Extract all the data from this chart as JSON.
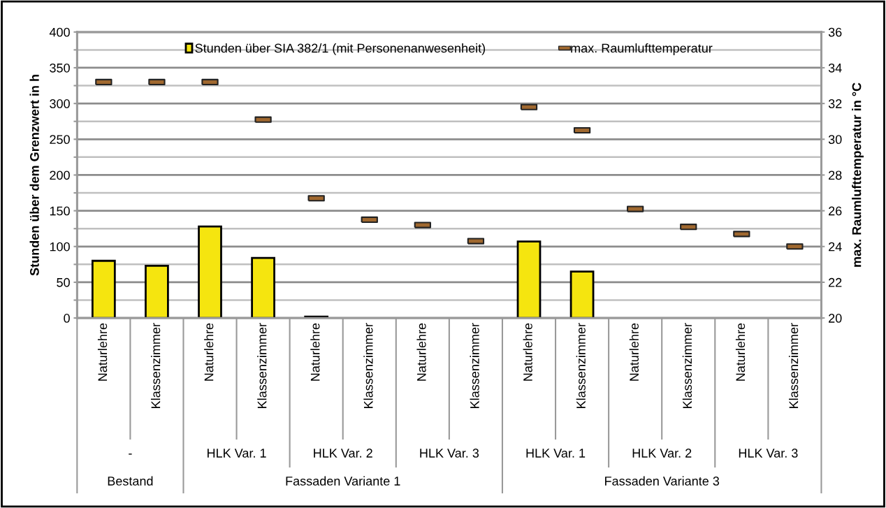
{
  "chart_data": {
    "type": "bar",
    "categories": [
      "Naturlehre",
      "Klassenzimmer",
      "Naturlehre",
      "Klassenzimmer",
      "Naturlehre",
      "Klassenzimmer",
      "Naturlehre",
      "Klassenzimmer",
      "Naturlehre",
      "Klassenzimmer",
      "Naturlehre",
      "Klassenzimmer",
      "Naturlehre",
      "Klassenzimmer"
    ],
    "series": [
      {
        "name": "Stunden über SIA 382/1 (mit Personenanwesenheit)",
        "type": "bar",
        "color": "#f5e50f",
        "values": [
          80,
          73,
          128,
          84,
          2,
          0,
          0,
          0,
          107,
          65,
          0,
          0,
          0,
          0
        ]
      },
      {
        "name": "max. Raumlufttemperatur",
        "type": "scatter",
        "axis": "y2",
        "color": "#a0682f",
        "values": [
          33.2,
          33.2,
          33.2,
          31.1,
          26.7,
          25.5,
          25.2,
          24.3,
          31.8,
          30.5,
          26.1,
          25.1,
          24.7,
          24.0
        ]
      }
    ],
    "ylabel": "Stunden über dem Grenzwert in h",
    "y2label": "max. Raumlufttemperatur in °C",
    "ylim": [
      0,
      400
    ],
    "yticks": [
      0,
      {
        "value": 25,
        "label": null
      },
      50,
      {
        "value": 75,
        "label": null
      },
      100,
      {
        "value": 125,
        "label": null
      },
      150,
      {
        "value": 175,
        "label": null
      },
      200,
      {
        "value": 225,
        "label": null
      },
      250,
      {
        "value": 275,
        "label": null
      },
      300,
      {
        "value": 325,
        "label": null
      },
      350,
      {
        "value": 375,
        "label": null
      },
      400
    ],
    "y2lim": [
      20,
      36
    ],
    "y2ticks": [
      20,
      22,
      24,
      26,
      28,
      30,
      32,
      34,
      36
    ],
    "annotations": [
      "-",
      "HLK Var. 1",
      "HLK Var. 2",
      "HLK Var. 3",
      "HLK Var. 1",
      "HLK Var. 2",
      "HLK Var. 3",
      "Bestand",
      "Fassaden Variante 1",
      "Fassaden Variante 3"
    ],
    "grid": "y",
    "legend": "top"
  }
}
